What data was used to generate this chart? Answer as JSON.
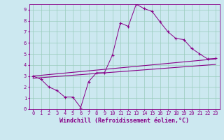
{
  "xlabel": "Windchill (Refroidissement éolien,°C)",
  "background_color": "#cce8f0",
  "grid_color": "#99ccbb",
  "line_color": "#880088",
  "spine_color": "#880088",
  "xlim": [
    -0.5,
    23.5
  ],
  "ylim": [
    0,
    9.5
  ],
  "xticks": [
    0,
    1,
    2,
    3,
    4,
    5,
    6,
    7,
    8,
    9,
    10,
    11,
    12,
    13,
    14,
    15,
    16,
    17,
    18,
    19,
    20,
    21,
    22,
    23
  ],
  "yticks": [
    0,
    1,
    2,
    3,
    4,
    5,
    6,
    7,
    8,
    9
  ],
  "series1_x": [
    0,
    1,
    2,
    3,
    4,
    5,
    6,
    7,
    8,
    9,
    10,
    11,
    12,
    13,
    14,
    15,
    16,
    17,
    18,
    19,
    20,
    21,
    22,
    23
  ],
  "series1_y": [
    3.0,
    2.7,
    2.0,
    1.7,
    1.1,
    1.1,
    0.15,
    2.5,
    3.3,
    3.3,
    4.9,
    7.8,
    7.5,
    9.5,
    9.1,
    8.85,
    7.9,
    7.0,
    6.4,
    6.3,
    5.5,
    5.0,
    4.55,
    4.6
  ],
  "series2_x": [
    0,
    23
  ],
  "series2_y": [
    3.0,
    4.55
  ],
  "series3_x": [
    0,
    23
  ],
  "series3_y": [
    2.8,
    4.05
  ],
  "marker": "+",
  "xlabel_fontsize": 6,
  "tick_fontsize": 5
}
